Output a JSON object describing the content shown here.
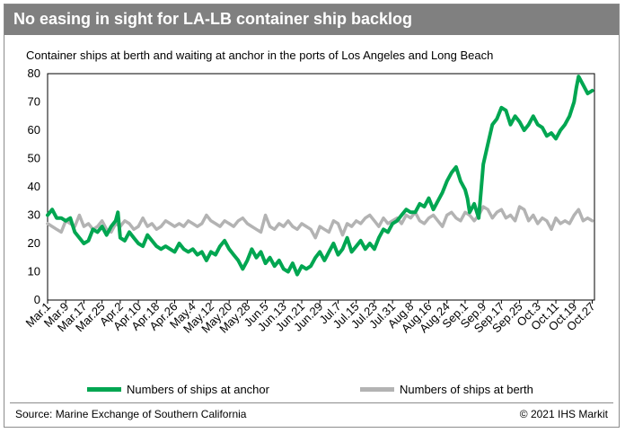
{
  "header": {
    "title": "No easing in sight for LA-LB container ship backlog",
    "subtitle": "Container ships at berth and waiting at anchor in the ports of Los Angeles and Long Beach"
  },
  "footer": {
    "source": "Source: Marine Exchange of Southern California",
    "copyright": "© 2021 IHS Markit"
  },
  "colors": {
    "anchor": "#00a651",
    "berth": "#b3b3b3",
    "title_bar": "#808080",
    "frame": "#8c8c8c"
  },
  "chart_data": {
    "type": "line",
    "ylim": [
      0,
      80
    ],
    "yticks": [
      0,
      10,
      20,
      30,
      40,
      50,
      60,
      70,
      80
    ],
    "grid": false,
    "legend_position": "bottom",
    "x_tick_labels": [
      "Mar.1",
      "Mar.9",
      "Mar.17",
      "Mar.25",
      "Apr.2",
      "Apr.10",
      "Apr.18",
      "Apr.26",
      "May.4",
      "May.12",
      "May.20",
      "May.28",
      "Jun.5",
      "Jun.13",
      "Jun.21",
      "Jun.29",
      "Jul.7",
      "Jul.15",
      "Jul.23",
      "Jul.31",
      "Aug.8",
      "Aug.16",
      "Aug.24",
      "Sep.1",
      "Sep.9",
      "Sep.17",
      "Sep.25",
      "Oct.3",
      "Oct.11",
      "Oct.19",
      "Oct.27"
    ],
    "x_tick_days": [
      0,
      8,
      16,
      24,
      32,
      40,
      48,
      56,
      64,
      72,
      80,
      88,
      96,
      104,
      112,
      120,
      128,
      136,
      144,
      152,
      160,
      168,
      176,
      184,
      192,
      200,
      208,
      216,
      224,
      232,
      240
    ],
    "x_range_days": [
      0,
      241
    ],
    "series": [
      {
        "name": "Numbers of ships at anchor",
        "color": "#00a651",
        "days": [
          0,
          2,
          4,
          6,
          8,
          10,
          12,
          14,
          16,
          18,
          20,
          22,
          24,
          26,
          28,
          30,
          31,
          32,
          34,
          36,
          38,
          40,
          42,
          44,
          46,
          48,
          50,
          52,
          54,
          56,
          58,
          60,
          62,
          64,
          66,
          68,
          70,
          72,
          74,
          76,
          78,
          80,
          82,
          84,
          86,
          88,
          90,
          92,
          94,
          96,
          98,
          100,
          102,
          104,
          106,
          108,
          110,
          112,
          114,
          116,
          118,
          120,
          122,
          124,
          126,
          128,
          130,
          132,
          134,
          136,
          138,
          140,
          142,
          144,
          146,
          148,
          150,
          152,
          154,
          156,
          158,
          160,
          162,
          164,
          166,
          168,
          170,
          172,
          174,
          176,
          178,
          180,
          182,
          184,
          185,
          186,
          188,
          190,
          192,
          194,
          196,
          198,
          200,
          202,
          204,
          206,
          208,
          210,
          212,
          214,
          216,
          218,
          220,
          222,
          224,
          226,
          228,
          230,
          232,
          233,
          234,
          236,
          238,
          240
        ],
        "values": [
          30,
          32,
          29,
          29,
          28,
          29,
          24,
          22,
          20,
          21,
          25,
          24,
          26,
          23,
          26,
          28,
          31,
          22,
          21,
          24,
          22,
          20,
          19,
          23,
          21,
          19,
          18,
          19,
          18,
          17,
          20,
          18,
          17,
          18,
          16,
          17,
          14,
          17,
          16,
          19,
          21,
          18,
          16,
          14,
          11,
          14,
          18,
          15,
          17,
          13,
          15,
          12,
          14,
          11,
          10,
          13,
          9,
          12,
          11,
          12,
          15,
          17,
          14,
          17,
          20,
          16,
          18,
          22,
          17,
          19,
          21,
          18,
          20,
          18,
          22,
          25,
          24,
          27,
          28,
          30,
          32,
          31,
          31,
          34,
          33,
          36,
          32,
          35,
          38,
          42,
          45,
          47,
          42,
          39,
          36,
          31,
          34,
          29,
          48,
          55,
          62,
          64,
          68,
          67,
          62,
          65,
          63,
          60,
          62,
          65,
          62,
          61,
          58,
          59,
          57,
          60,
          62,
          65,
          70,
          75,
          79,
          76,
          73,
          74
        ]
      },
      {
        "name": "Numbers of ships at berth",
        "color": "#b3b3b3",
        "days": [
          0,
          2,
          4,
          6,
          8,
          10,
          12,
          14,
          16,
          18,
          20,
          22,
          24,
          26,
          28,
          30,
          32,
          34,
          36,
          38,
          40,
          42,
          44,
          46,
          48,
          50,
          52,
          54,
          56,
          58,
          60,
          62,
          64,
          66,
          68,
          70,
          72,
          74,
          76,
          78,
          80,
          82,
          84,
          86,
          88,
          90,
          92,
          94,
          96,
          98,
          100,
          102,
          104,
          106,
          108,
          110,
          112,
          114,
          116,
          118,
          120,
          122,
          124,
          126,
          128,
          130,
          132,
          134,
          136,
          138,
          140,
          142,
          144,
          146,
          148,
          150,
          152,
          154,
          156,
          158,
          160,
          162,
          164,
          166,
          168,
          170,
          172,
          174,
          176,
          178,
          180,
          182,
          184,
          186,
          188,
          190,
          192,
          194,
          196,
          198,
          200,
          202,
          204,
          206,
          208,
          210,
          212,
          214,
          216,
          218,
          220,
          222,
          224,
          226,
          228,
          230,
          232,
          234,
          236,
          238,
          240
        ],
        "values": [
          27,
          26,
          25,
          24,
          28,
          27,
          26,
          30,
          26,
          27,
          25,
          26,
          28,
          25,
          24,
          27,
          26,
          28,
          27,
          25,
          26,
          29,
          26,
          27,
          25,
          26,
          28,
          27,
          26,
          27,
          26,
          28,
          27,
          26,
          27,
          30,
          28,
          27,
          26,
          28,
          27,
          26,
          28,
          29,
          27,
          26,
          25,
          24,
          30,
          26,
          25,
          27,
          26,
          28,
          26,
          25,
          27,
          26,
          25,
          22,
          26,
          25,
          24,
          28,
          27,
          23,
          27,
          26,
          28,
          27,
          29,
          30,
          28,
          26,
          29,
          27,
          28,
          29,
          27,
          30,
          29,
          31,
          28,
          27,
          29,
          30,
          28,
          26,
          30,
          31,
          29,
          28,
          31,
          30,
          28,
          30,
          33,
          32,
          29,
          31,
          32,
          29,
          30,
          28,
          33,
          32,
          28,
          30,
          27,
          29,
          28,
          25,
          29,
          27,
          28,
          27,
          30,
          32,
          28,
          29,
          28
        ]
      }
    ]
  }
}
